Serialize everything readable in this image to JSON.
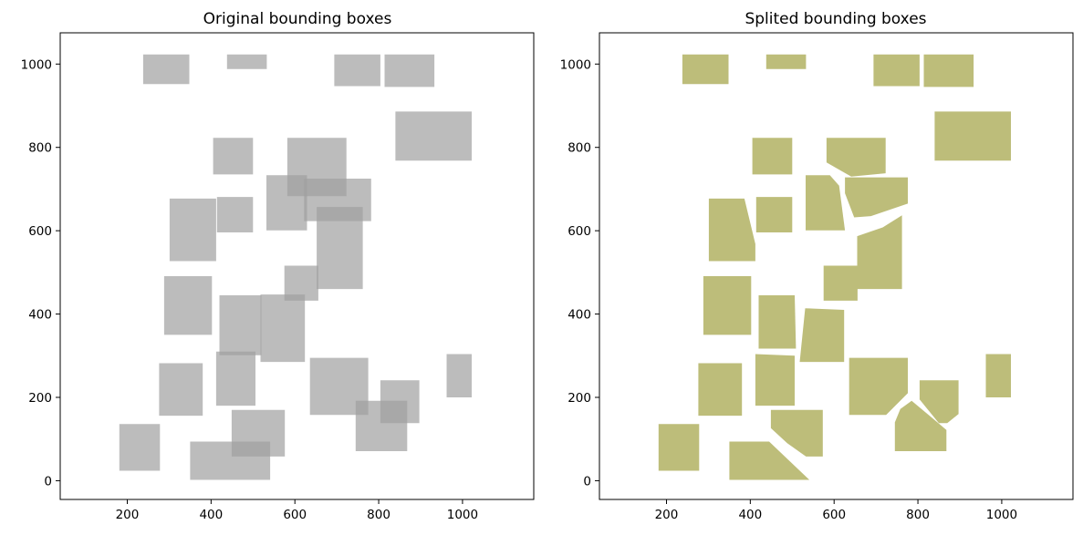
{
  "chart_data": [
    {
      "type": "polygons",
      "title": "Original bounding boxes",
      "xlabel": "",
      "ylabel": "",
      "xlim": [
        40,
        1170
      ],
      "ylim": [
        -45,
        1075
      ],
      "xticks": [
        200,
        400,
        600,
        800,
        1000
      ],
      "yticks": [
        0,
        200,
        400,
        600,
        800,
        1000
      ],
      "grid": false,
      "fill_color": "#a0a0a0",
      "fill_opacity": 0.7,
      "boxes": [
        [
          [
            238,
            952
          ],
          [
            348,
            952
          ],
          [
            348,
            1023
          ],
          [
            238,
            1023
          ]
        ],
        [
          [
            438,
            988
          ],
          [
            533,
            988
          ],
          [
            533,
            1023
          ],
          [
            438,
            1023
          ]
        ],
        [
          [
            694,
            947
          ],
          [
            804,
            947
          ],
          [
            804,
            1023
          ],
          [
            694,
            1023
          ]
        ],
        [
          [
            814,
            945
          ],
          [
            933,
            945
          ],
          [
            933,
            1023
          ],
          [
            814,
            1023
          ]
        ],
        [
          [
            840,
            768
          ],
          [
            1022,
            768
          ],
          [
            1022,
            886
          ],
          [
            840,
            886
          ]
        ],
        [
          [
            405,
            735
          ],
          [
            500,
            735
          ],
          [
            500,
            823
          ],
          [
            405,
            823
          ]
        ],
        [
          [
            582,
            823
          ],
          [
            723,
            823
          ],
          [
            723,
            683
          ],
          [
            582,
            683
          ]
        ],
        [
          [
            622,
            623
          ],
          [
            782,
            623
          ],
          [
            782,
            725
          ],
          [
            622,
            725
          ]
        ],
        [
          [
            532,
            601
          ],
          [
            629,
            601
          ],
          [
            629,
            733
          ],
          [
            532,
            733
          ]
        ],
        [
          [
            414,
            596
          ],
          [
            500,
            596
          ],
          [
            500,
            681
          ],
          [
            414,
            681
          ]
        ],
        [
          [
            301,
            527
          ],
          [
            412,
            527
          ],
          [
            412,
            677
          ],
          [
            301,
            677
          ]
        ],
        [
          [
            652,
            460
          ],
          [
            762,
            460
          ],
          [
            762,
            657
          ],
          [
            652,
            657
          ]
        ],
        [
          [
            575,
            432
          ],
          [
            656,
            432
          ],
          [
            656,
            516
          ],
          [
            575,
            516
          ]
        ],
        [
          [
            288,
            350
          ],
          [
            402,
            350
          ],
          [
            402,
            491
          ],
          [
            288,
            491
          ]
        ],
        [
          [
            420,
            301
          ],
          [
            520,
            301
          ],
          [
            520,
            445
          ],
          [
            420,
            445
          ]
        ],
        [
          [
            518,
            285
          ],
          [
            624,
            285
          ],
          [
            624,
            447
          ],
          [
            518,
            447
          ]
        ],
        [
          [
            412,
            180
          ],
          [
            506,
            180
          ],
          [
            506,
            310
          ],
          [
            412,
            310
          ]
        ],
        [
          [
            276,
            156
          ],
          [
            380,
            156
          ],
          [
            380,
            282
          ],
          [
            276,
            282
          ]
        ],
        [
          [
            636,
            158
          ],
          [
            775,
            158
          ],
          [
            775,
            295
          ],
          [
            636,
            295
          ]
        ],
        [
          [
            962,
            200
          ],
          [
            1022,
            200
          ],
          [
            1022,
            304
          ],
          [
            962,
            304
          ]
        ],
        [
          [
            804,
            138
          ],
          [
            897,
            138
          ],
          [
            897,
            241
          ],
          [
            804,
            241
          ]
        ],
        [
          [
            745,
            71
          ],
          [
            868,
            71
          ],
          [
            868,
            192
          ],
          [
            745,
            192
          ]
        ],
        [
          [
            449,
            58
          ],
          [
            576,
            58
          ],
          [
            576,
            170
          ],
          [
            449,
            170
          ]
        ],
        [
          [
            181,
            24
          ],
          [
            278,
            24
          ],
          [
            278,
            136
          ],
          [
            181,
            136
          ]
        ],
        [
          [
            350,
            2
          ],
          [
            541,
            2
          ],
          [
            541,
            94
          ],
          [
            350,
            94
          ]
        ]
      ]
    },
    {
      "type": "polygons",
      "title": "Splited bounding boxes",
      "xlabel": "",
      "ylabel": "",
      "xlim": [
        40,
        1170
      ],
      "ylim": [
        -45,
        1075
      ],
      "xticks": [
        200,
        400,
        600,
        800,
        1000
      ],
      "yticks": [
        0,
        200,
        400,
        600,
        800,
        1000
      ],
      "grid": false,
      "fill_color": "#bdbd7a",
      "fill_opacity": 1,
      "boxes": [
        [
          [
            238,
            952
          ],
          [
            348,
            952
          ],
          [
            348,
            1023
          ],
          [
            238,
            1023
          ]
        ],
        [
          [
            438,
            988
          ],
          [
            533,
            988
          ],
          [
            533,
            1023
          ],
          [
            438,
            1023
          ]
        ],
        [
          [
            694,
            947
          ],
          [
            804,
            947
          ],
          [
            804,
            1023
          ],
          [
            694,
            1023
          ]
        ],
        [
          [
            814,
            945
          ],
          [
            933,
            945
          ],
          [
            933,
            1023
          ],
          [
            814,
            1023
          ]
        ],
        [
          [
            840,
            768
          ],
          [
            1022,
            768
          ],
          [
            1022,
            886
          ],
          [
            840,
            886
          ]
        ],
        [
          [
            405,
            735
          ],
          [
            500,
            735
          ],
          [
            500,
            823
          ],
          [
            405,
            823
          ]
        ],
        [
          [
            582,
            823
          ],
          [
            723,
            823
          ],
          [
            723,
            738
          ],
          [
            641,
            730
          ],
          [
            582,
            764
          ]
        ],
        [
          [
            626,
            728
          ],
          [
            776,
            728
          ],
          [
            776,
            665
          ],
          [
            688,
            635
          ],
          [
            648,
            632
          ],
          [
            626,
            690
          ]
        ],
        [
          [
            532,
            601
          ],
          [
            626,
            601
          ],
          [
            612,
            708
          ],
          [
            590,
            733
          ],
          [
            532,
            733
          ]
        ],
        [
          [
            414,
            596
          ],
          [
            500,
            596
          ],
          [
            500,
            681
          ],
          [
            414,
            681
          ]
        ],
        [
          [
            301,
            527
          ],
          [
            412,
            527
          ],
          [
            412,
            568
          ],
          [
            386,
            677
          ],
          [
            301,
            677
          ]
        ],
        [
          [
            655,
            460
          ],
          [
            762,
            460
          ],
          [
            762,
            637
          ],
          [
            716,
            608
          ],
          [
            655,
            587
          ]
        ],
        [
          [
            575,
            432
          ],
          [
            656,
            432
          ],
          [
            656,
            516
          ],
          [
            575,
            516
          ]
        ],
        [
          [
            288,
            350
          ],
          [
            402,
            350
          ],
          [
            402,
            491
          ],
          [
            288,
            491
          ]
        ],
        [
          [
            420,
            317
          ],
          [
            509,
            317
          ],
          [
            506,
            445
          ],
          [
            420,
            445
          ]
        ],
        [
          [
            518,
            285
          ],
          [
            624,
            285
          ],
          [
            624,
            410
          ],
          [
            531,
            414
          ]
        ],
        [
          [
            412,
            180
          ],
          [
            506,
            180
          ],
          [
            506,
            300
          ],
          [
            412,
            304
          ]
        ],
        [
          [
            276,
            156
          ],
          [
            380,
            156
          ],
          [
            380,
            282
          ],
          [
            276,
            282
          ]
        ],
        [
          [
            636,
            158
          ],
          [
            724,
            158
          ],
          [
            776,
            210
          ],
          [
            776,
            295
          ],
          [
            636,
            295
          ]
        ],
        [
          [
            962,
            200
          ],
          [
            1022,
            200
          ],
          [
            1022,
            304
          ],
          [
            962,
            304
          ]
        ],
        [
          [
            850,
            138
          ],
          [
            870,
            138
          ],
          [
            897,
            160
          ],
          [
            897,
            241
          ],
          [
            804,
            241
          ],
          [
            804,
            195
          ]
        ],
        [
          [
            745,
            71
          ],
          [
            868,
            71
          ],
          [
            868,
            122
          ],
          [
            785,
            192
          ],
          [
            758,
            172
          ],
          [
            745,
            140
          ]
        ],
        [
          [
            533,
            58
          ],
          [
            573,
            58
          ],
          [
            573,
            170
          ],
          [
            449,
            170
          ],
          [
            449,
            126
          ],
          [
            488,
            90
          ]
        ],
        [
          [
            181,
            24
          ],
          [
            278,
            24
          ],
          [
            278,
            136
          ],
          [
            181,
            136
          ]
        ],
        [
          [
            350,
            2
          ],
          [
            541,
            2
          ],
          [
            445,
            94
          ],
          [
            350,
            94
          ]
        ]
      ]
    }
  ]
}
